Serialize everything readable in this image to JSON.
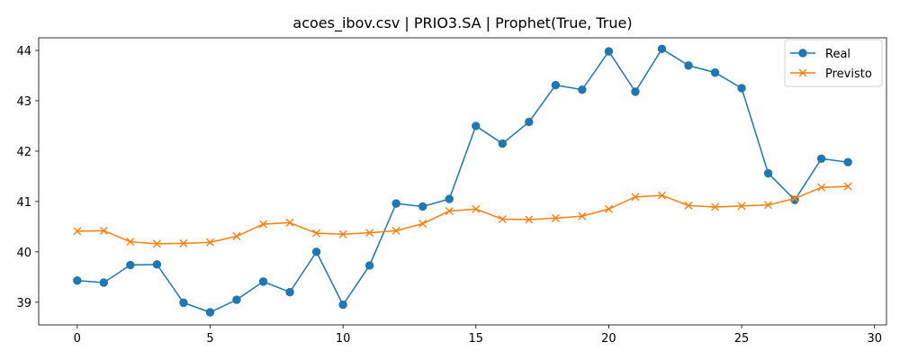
{
  "chart_data": {
    "type": "line",
    "title": "acoes_ibov.csv | PRIO3.SA | Prophet(True, True)",
    "xlabel": "",
    "ylabel": "",
    "xlim": [
      -1.45,
      30.45
    ],
    "ylim": [
      38.55,
      44.25
    ],
    "xticks": [
      0,
      5,
      10,
      15,
      20,
      25,
      30
    ],
    "yticks": [
      39,
      40,
      41,
      42,
      43,
      44
    ],
    "grid": false,
    "legend_position": "top-right",
    "x": [
      0,
      1,
      2,
      3,
      4,
      5,
      6,
      7,
      8,
      9,
      10,
      11,
      12,
      13,
      14,
      15,
      16,
      17,
      18,
      19,
      20,
      21,
      22,
      23,
      24,
      25,
      26,
      27,
      28,
      29
    ],
    "series": [
      {
        "name": "Real",
        "color": "#1f77b4",
        "marker": "circle",
        "values": [
          39.43,
          39.39,
          39.74,
          39.75,
          38.99,
          38.8,
          39.05,
          39.41,
          39.2,
          40.0,
          38.95,
          39.73,
          40.96,
          40.9,
          41.05,
          42.5,
          42.15,
          42.58,
          43.31,
          43.22,
          43.98,
          43.18,
          44.03,
          43.7,
          43.56,
          43.25,
          41.56,
          41.03,
          41.85,
          41.78
        ]
      },
      {
        "name": "Previsto",
        "color": "#ff7f0e",
        "marker": "x",
        "values": [
          40.41,
          40.42,
          40.2,
          40.16,
          40.17,
          40.19,
          40.31,
          40.55,
          40.58,
          40.37,
          40.35,
          40.38,
          40.42,
          40.56,
          40.81,
          40.85,
          40.65,
          40.64,
          40.67,
          40.71,
          40.85,
          41.09,
          41.12,
          40.92,
          40.89,
          40.91,
          40.93,
          41.06,
          41.28,
          41.3
        ]
      }
    ]
  }
}
